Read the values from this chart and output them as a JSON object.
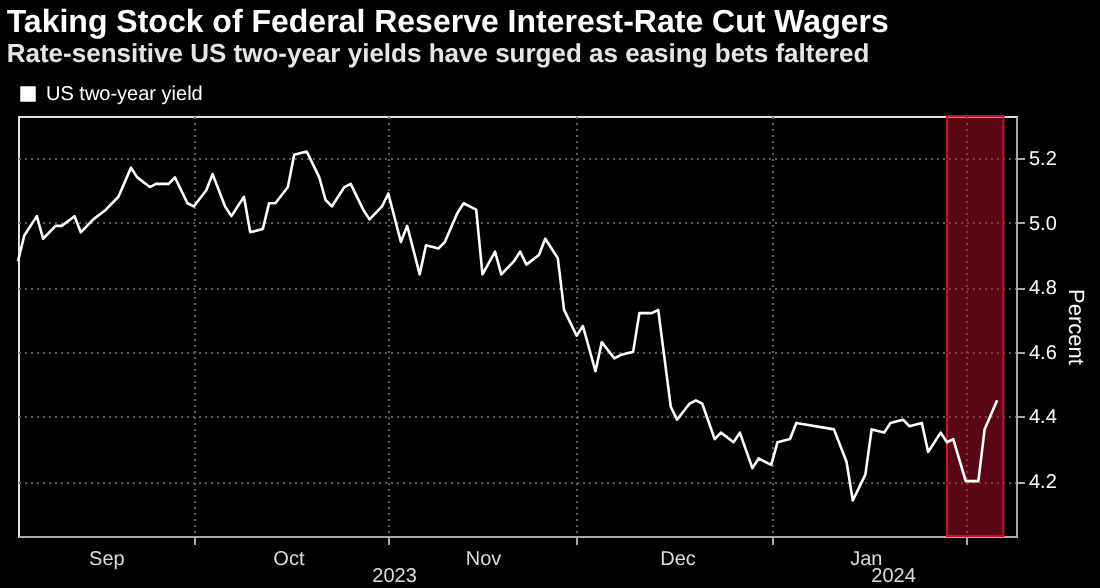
{
  "chart_data": {
    "type": "line",
    "title": "Taking Stock of Federal Reserve Interest-Rate Cut Wagers",
    "subtitle": "Rate-sensitive US two-year yields have surged as easing bets faltered",
    "ylabel": "Percent",
    "x": [
      "2023-09-03",
      "2023-09-04",
      "2023-09-06",
      "2023-09-07",
      "2023-09-09",
      "2023-09-10",
      "2023-09-12",
      "2023-09-13",
      "2023-09-15",
      "2023-09-17",
      "2023-09-19",
      "2023-09-21",
      "2023-09-22",
      "2023-09-24",
      "2023-09-25",
      "2023-09-27",
      "2023-09-28",
      "2023-09-30",
      "2023-10-01",
      "2023-10-03",
      "2023-10-04",
      "2023-10-06",
      "2023-10-07",
      "2023-10-09",
      "2023-10-10",
      "2023-10-12",
      "2023-10-13",
      "2023-10-14",
      "2023-10-16",
      "2023-10-17",
      "2023-10-19",
      "2023-10-21",
      "2023-10-22",
      "2023-10-23",
      "2023-10-25",
      "2023-10-26",
      "2023-10-28",
      "2023-10-29",
      "2023-10-31",
      "2023-11-01",
      "2023-11-03",
      "2023-11-04",
      "2023-11-06",
      "2023-11-07",
      "2023-11-09",
      "2023-11-10",
      "2023-11-12",
      "2023-11-13",
      "2023-11-15",
      "2023-11-16",
      "2023-11-18",
      "2023-11-19",
      "2023-11-21",
      "2023-11-22",
      "2023-11-23",
      "2023-11-25",
      "2023-11-26",
      "2023-11-28",
      "2023-11-29",
      "2023-12-01",
      "2023-12-02",
      "2023-12-04",
      "2023-12-05",
      "2023-12-07",
      "2023-12-08",
      "2023-12-10",
      "2023-12-11",
      "2023-12-13",
      "2023-12-14",
      "2023-12-16",
      "2023-12-17",
      "2023-12-19",
      "2023-12-20",
      "2023-12-21",
      "2023-12-23",
      "2023-12-24",
      "2023-12-26",
      "2023-12-27",
      "2023-12-29",
      "2023-12-30",
      "2024-01-01",
      "2024-01-02",
      "2024-01-04",
      "2024-01-05",
      "2024-01-11",
      "2024-01-13",
      "2024-01-14",
      "2024-01-16",
      "2024-01-17",
      "2024-01-19",
      "2024-01-20",
      "2024-01-22",
      "2024-01-23",
      "2024-01-25",
      "2024-01-26",
      "2024-01-28",
      "2024-01-29",
      "2024-01-30",
      "2024-02-01",
      "2024-02-03",
      "2024-02-04",
      "2024-02-06"
    ],
    "series": [
      {
        "name": "US two-year yield",
        "color": "#ffffff",
        "values": [
          4.88,
          4.96,
          5.02,
          4.95,
          4.99,
          4.99,
          5.02,
          4.97,
          5.01,
          5.04,
          5.08,
          5.17,
          5.14,
          5.11,
          5.12,
          5.12,
          5.14,
          5.06,
          5.05,
          5.1,
          5.15,
          5.05,
          5.02,
          5.08,
          4.97,
          4.98,
          5.06,
          5.06,
          5.11,
          5.21,
          5.22,
          5.14,
          5.07,
          5.05,
          5.11,
          5.12,
          5.04,
          5.01,
          5.05,
          5.09,
          4.94,
          4.99,
          4.84,
          4.93,
          4.92,
          4.94,
          5.03,
          5.06,
          5.04,
          4.84,
          4.91,
          4.84,
          4.88,
          4.91,
          4.87,
          4.9,
          4.95,
          4.89,
          4.73,
          4.65,
          4.68,
          4.54,
          4.63,
          4.58,
          4.59,
          4.6,
          4.72,
          4.72,
          4.73,
          4.43,
          4.39,
          4.44,
          4.45,
          4.44,
          4.33,
          4.35,
          4.32,
          4.35,
          4.24,
          4.27,
          4.25,
          4.32,
          4.33,
          4.38,
          4.36,
          4.26,
          4.14,
          4.22,
          4.36,
          4.35,
          4.38,
          4.39,
          4.37,
          4.38,
          4.29,
          4.35,
          4.32,
          4.33,
          4.2,
          4.2,
          4.36,
          4.45
        ]
      }
    ],
    "xlim": [
      "2023-09-03",
      "2024-02-09"
    ],
    "xticks": [
      {
        "value": "2023-09-17",
        "label": "Sep"
      },
      {
        "value": "2023-10-01",
        "label": null
      },
      {
        "value": "2023-10-16",
        "label": "Oct"
      },
      {
        "value": "2023-11-01",
        "label": null
      },
      {
        "value": "2023-11-16",
        "label": "Nov"
      },
      {
        "value": "2023-12-01",
        "label": null
      },
      {
        "value": "2023-12-17",
        "label": "Dec"
      },
      {
        "value": "2024-01-01",
        "label": null
      },
      {
        "value": "2024-01-16",
        "label": "Jan"
      },
      {
        "value": "2024-02-01",
        "label": null
      }
    ],
    "ylim": [
      4.03,
      5.33
    ],
    "yticks": [
      {
        "value": 4.2,
        "label": "4.2"
      },
      {
        "value": 4.4,
        "label": "4.4"
      },
      {
        "value": 4.6,
        "label": "4.6"
      },
      {
        "value": 4.8,
        "label": "4.8"
      },
      {
        "value": 5.0,
        "label": "5.0"
      },
      {
        "value": 5.2,
        "label": "5.2"
      }
    ],
    "annotations": [
      "2023",
      "2024"
    ],
    "bands": [
      {
        "axis": "x",
        "from": "2024-01-29",
        "to": "2024-02-07",
        "color": "#c8102e"
      }
    ],
    "grid": true,
    "legend": "top left",
    "marker": "none",
    "line_style": "solid"
  }
}
